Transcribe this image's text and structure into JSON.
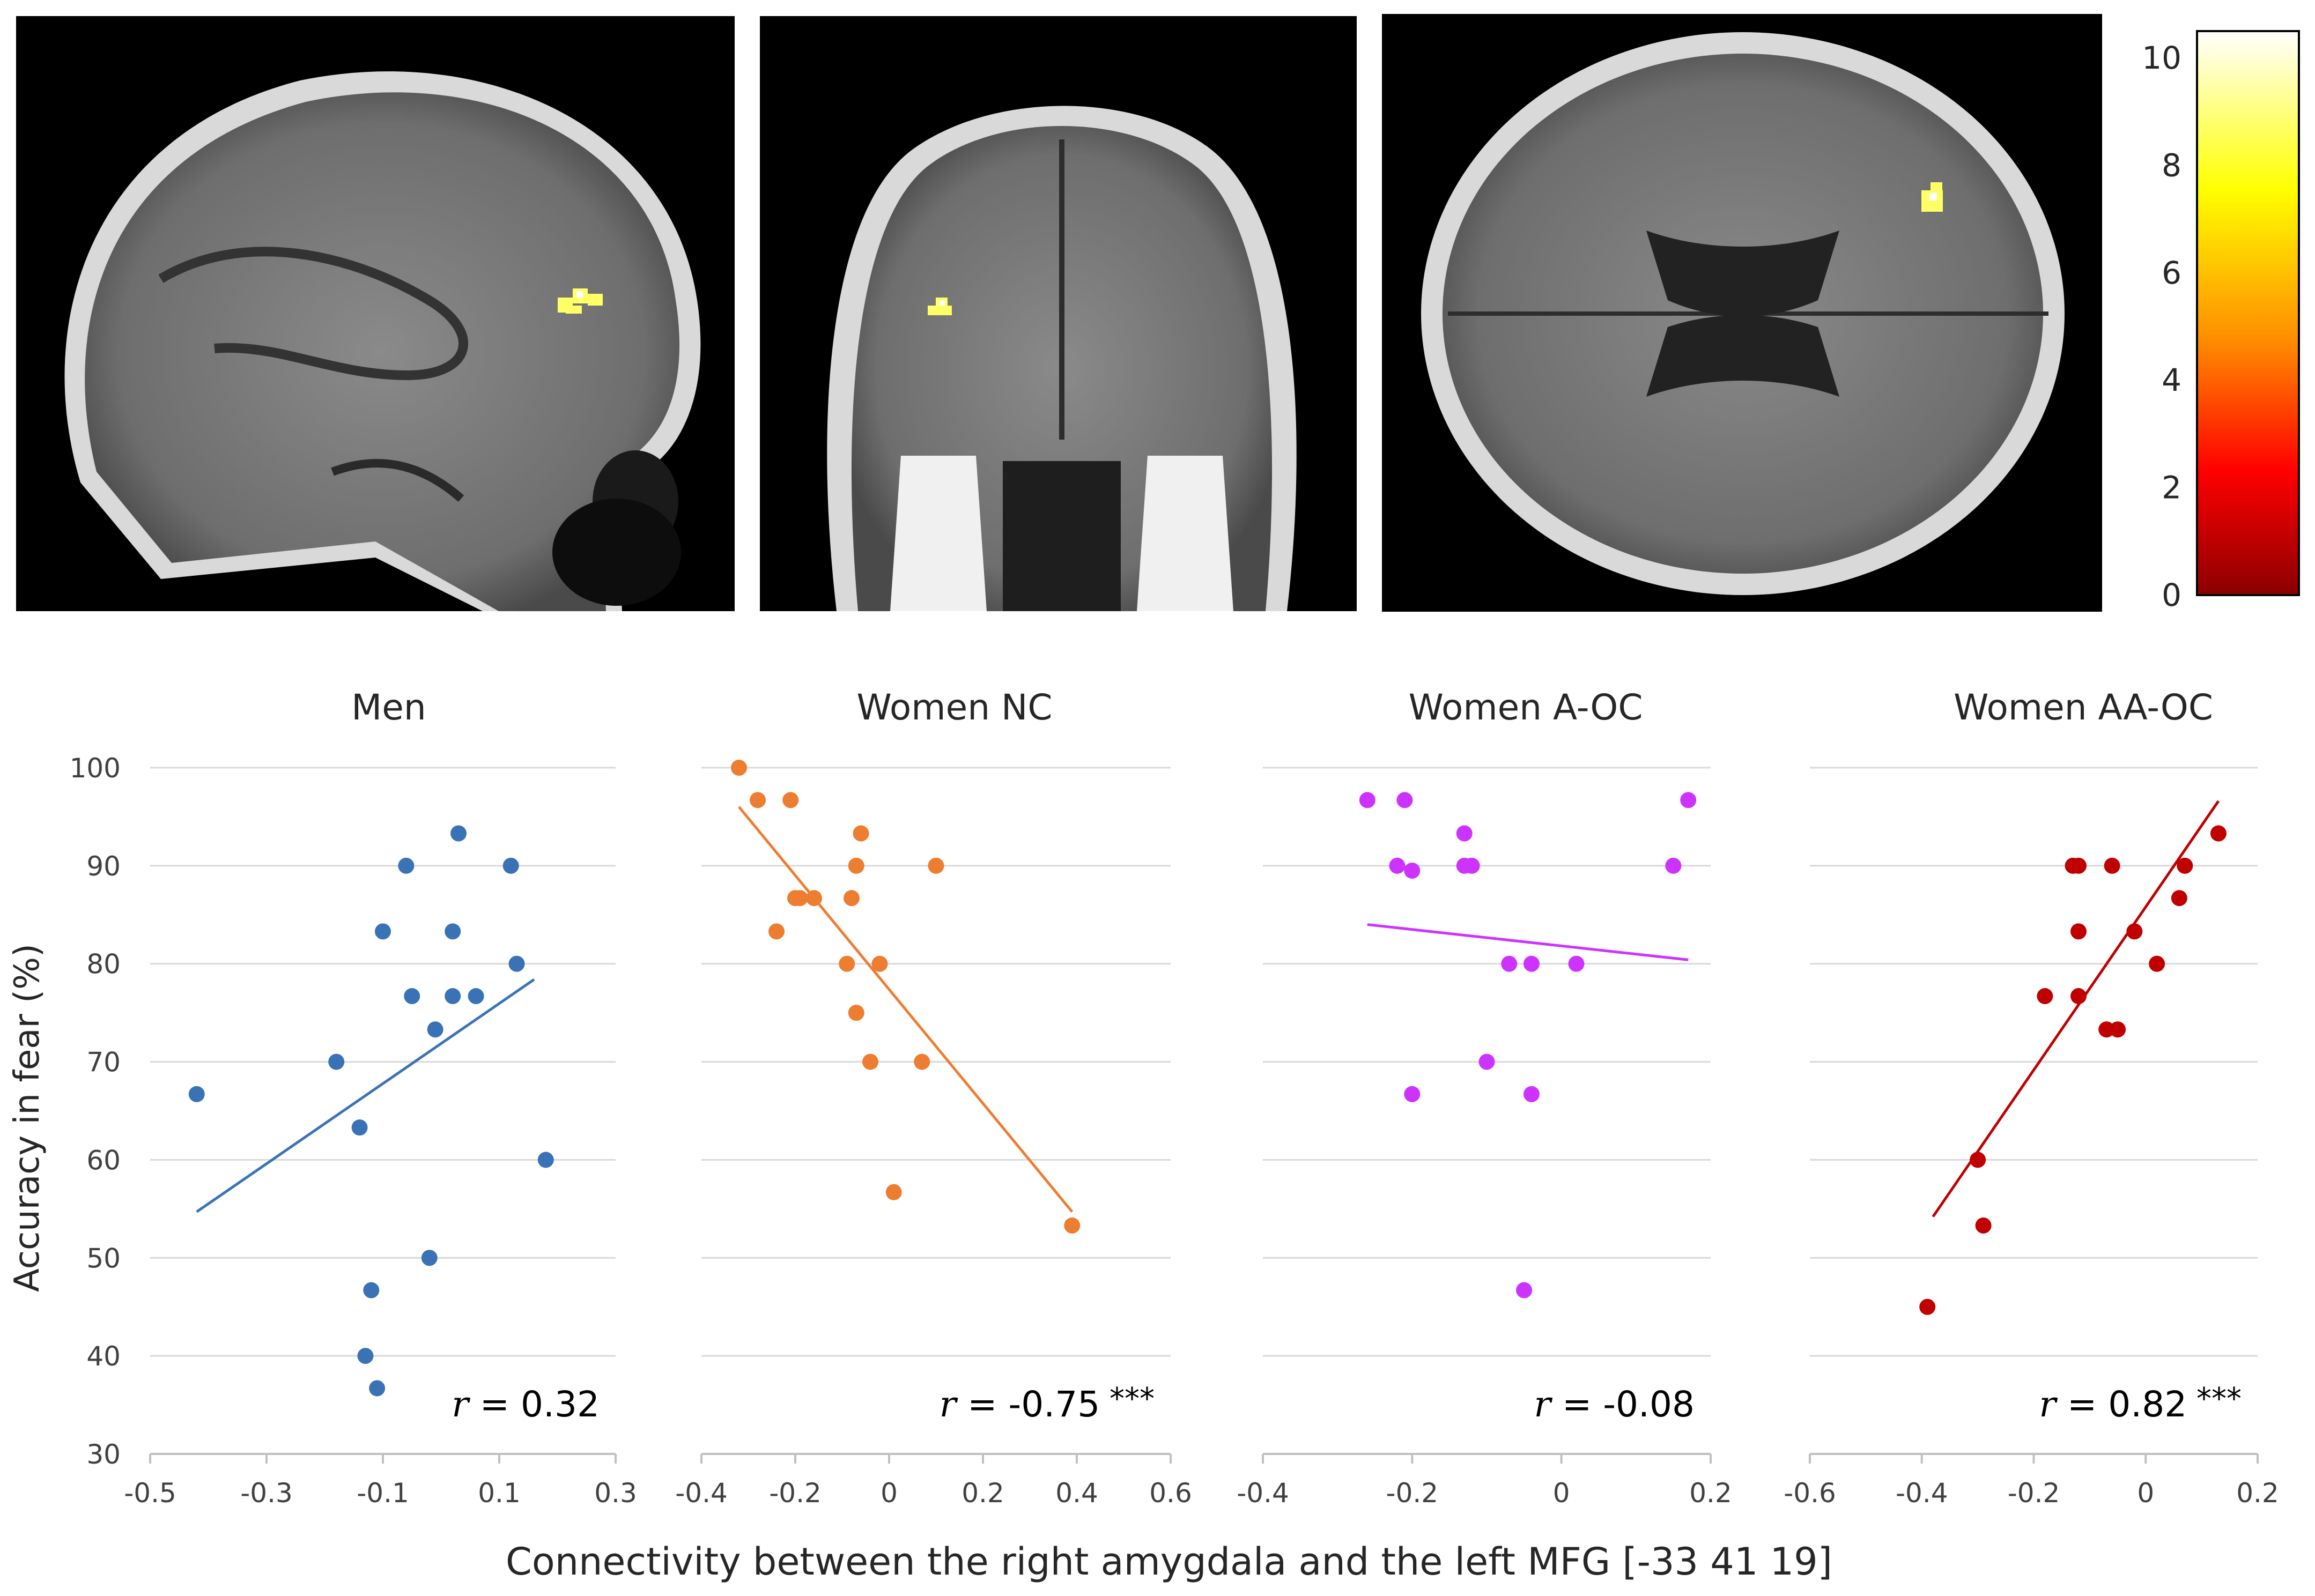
{
  "colorbar": {
    "ticks": [
      0,
      2,
      4,
      6,
      8,
      10
    ],
    "range": [
      0,
      10.5
    ],
    "gradient": [
      "#8b0000",
      "#ff0000",
      "#ff8c00",
      "#ffff00",
      "#ffffff"
    ]
  },
  "brain_slices": [
    "sagittal",
    "coronal",
    "axial"
  ],
  "shared_xlabel": "Connectivity between the right amygdala and the left MFG [-33 41 19]",
  "shared_ylabel": "Accuracy in fear (%)",
  "chart_data": [
    {
      "type": "scatter",
      "title": "Men",
      "color": "#3a73b5",
      "xlim": [
        -0.5,
        0.3
      ],
      "xticks": [
        -0.5,
        -0.3,
        -0.1,
        0.1,
        0.3
      ],
      "xtick_labels": [
        "-0.5",
        "-0.3",
        "-0.1",
        "0.1",
        "0.3"
      ],
      "ylim": [
        30,
        100
      ],
      "yticks": [
        30,
        40,
        50,
        60,
        70,
        80,
        90,
        100
      ],
      "points": [
        {
          "x": -0.42,
          "y": 66.7
        },
        {
          "x": -0.18,
          "y": 70
        },
        {
          "x": -0.14,
          "y": 63.3
        },
        {
          "x": -0.1,
          "y": 83.3
        },
        {
          "x": -0.06,
          "y": 90
        },
        {
          "x": -0.05,
          "y": 76.7
        },
        {
          "x": -0.01,
          "y": 73.3
        },
        {
          "x": 0.02,
          "y": 76.7
        },
        {
          "x": 0.02,
          "y": 83.3
        },
        {
          "x": 0.03,
          "y": 93.3
        },
        {
          "x": 0.06,
          "y": 76.7
        },
        {
          "x": 0.12,
          "y": 90
        },
        {
          "x": 0.13,
          "y": 80
        },
        {
          "x": 0.18,
          "y": 60
        },
        {
          "x": -0.02,
          "y": 50
        },
        {
          "x": -0.12,
          "y": 46.7
        },
        {
          "x": -0.13,
          "y": 40
        },
        {
          "x": -0.11,
          "y": 36.7
        }
      ],
      "trend": [
        {
          "x": -0.42,
          "y": 54.7
        },
        {
          "x": 0.16,
          "y": 78.4
        }
      ],
      "r_label": "r",
      "r_value": " = 0.32",
      "stars": ""
    },
    {
      "type": "scatter",
      "title": "Women NC",
      "color": "#ed7d31",
      "xlim": [
        -0.4,
        0.6
      ],
      "xticks": [
        -0.4,
        -0.2,
        0,
        0.2,
        0.4,
        0.6
      ],
      "xtick_labels": [
        "-0.4",
        "-0.2",
        "0",
        "0.2",
        "0.4",
        "0.6"
      ],
      "ylim": [
        30,
        100
      ],
      "yticks": [
        30,
        40,
        50,
        60,
        70,
        80,
        90,
        100
      ],
      "points": [
        {
          "x": -0.32,
          "y": 100
        },
        {
          "x": -0.28,
          "y": 96.7
        },
        {
          "x": -0.21,
          "y": 96.7
        },
        {
          "x": -0.2,
          "y": 86.7
        },
        {
          "x": -0.19,
          "y": 86.7
        },
        {
          "x": -0.16,
          "y": 86.7
        },
        {
          "x": -0.24,
          "y": 83.3
        },
        {
          "x": -0.08,
          "y": 86.7
        },
        {
          "x": -0.06,
          "y": 93.3
        },
        {
          "x": -0.07,
          "y": 90
        },
        {
          "x": 0.1,
          "y": 90
        },
        {
          "x": -0.09,
          "y": 80
        },
        {
          "x": -0.02,
          "y": 80
        },
        {
          "x": -0.07,
          "y": 75
        },
        {
          "x": -0.04,
          "y": 70
        },
        {
          "x": 0.07,
          "y": 70
        },
        {
          "x": 0.01,
          "y": 56.7
        },
        {
          "x": 0.39,
          "y": 53.3
        }
      ],
      "trend": [
        {
          "x": -0.32,
          "y": 96
        },
        {
          "x": 0.39,
          "y": 54.7
        }
      ],
      "r_label": "r",
      "r_value": " = -0.75",
      "stars": "***"
    },
    {
      "type": "scatter",
      "title": "Women A-OC",
      "color": "#cc33ff",
      "xlim": [
        -0.4,
        0.2
      ],
      "xticks": [
        -0.4,
        -0.2,
        0,
        0.2
      ],
      "xtick_labels": [
        "-0.4",
        "-0.2",
        "0",
        "0.2"
      ],
      "ylim": [
        30,
        100
      ],
      "yticks": [
        30,
        40,
        50,
        60,
        70,
        80,
        90,
        100
      ],
      "points": [
        {
          "x": -0.26,
          "y": 96.7
        },
        {
          "x": -0.21,
          "y": 96.7
        },
        {
          "x": -0.22,
          "y": 90
        },
        {
          "x": -0.2,
          "y": 89.5
        },
        {
          "x": -0.13,
          "y": 93.3
        },
        {
          "x": -0.13,
          "y": 90
        },
        {
          "x": -0.12,
          "y": 90
        },
        {
          "x": 0.15,
          "y": 90
        },
        {
          "x": 0.17,
          "y": 96.7
        },
        {
          "x": -0.07,
          "y": 80
        },
        {
          "x": -0.04,
          "y": 80
        },
        {
          "x": 0.02,
          "y": 80
        },
        {
          "x": -0.1,
          "y": 70
        },
        {
          "x": -0.2,
          "y": 66.7
        },
        {
          "x": -0.04,
          "y": 66.7
        },
        {
          "x": -0.05,
          "y": 46.7
        }
      ],
      "trend": [
        {
          "x": -0.26,
          "y": 84
        },
        {
          "x": 0.17,
          "y": 80.4
        }
      ],
      "r_label": "r",
      "r_value": " = -0.08",
      "stars": ""
    },
    {
      "type": "scatter",
      "title": "Women AA-OC",
      "color": "#c00000",
      "xlim": [
        -0.6,
        0.2
      ],
      "xticks": [
        -0.6,
        -0.4,
        -0.2,
        0,
        0.2
      ],
      "xtick_labels": [
        "-0.6",
        "-0.4",
        "-0.2",
        "0",
        "0.2"
      ],
      "ylim": [
        30,
        100
      ],
      "yticks": [
        30,
        40,
        50,
        60,
        70,
        80,
        90,
        100
      ],
      "points": [
        {
          "x": -0.39,
          "y": 45
        },
        {
          "x": -0.29,
          "y": 53.3
        },
        {
          "x": -0.3,
          "y": 60
        },
        {
          "x": -0.18,
          "y": 76.7
        },
        {
          "x": -0.13,
          "y": 90
        },
        {
          "x": -0.12,
          "y": 90
        },
        {
          "x": -0.12,
          "y": 83.3
        },
        {
          "x": -0.12,
          "y": 76.7
        },
        {
          "x": -0.07,
          "y": 73.3
        },
        {
          "x": -0.05,
          "y": 73.3
        },
        {
          "x": -0.06,
          "y": 90
        },
        {
          "x": -0.02,
          "y": 83.3
        },
        {
          "x": 0.02,
          "y": 80
        },
        {
          "x": 0.06,
          "y": 86.7
        },
        {
          "x": 0.07,
          "y": 90
        },
        {
          "x": 0.13,
          "y": 93.3
        }
      ],
      "trend": [
        {
          "x": -0.38,
          "y": 54.2
        },
        {
          "x": 0.13,
          "y": 96.6
        }
      ],
      "r_label": "r",
      "r_value": " = 0.82",
      "stars": "***"
    }
  ]
}
